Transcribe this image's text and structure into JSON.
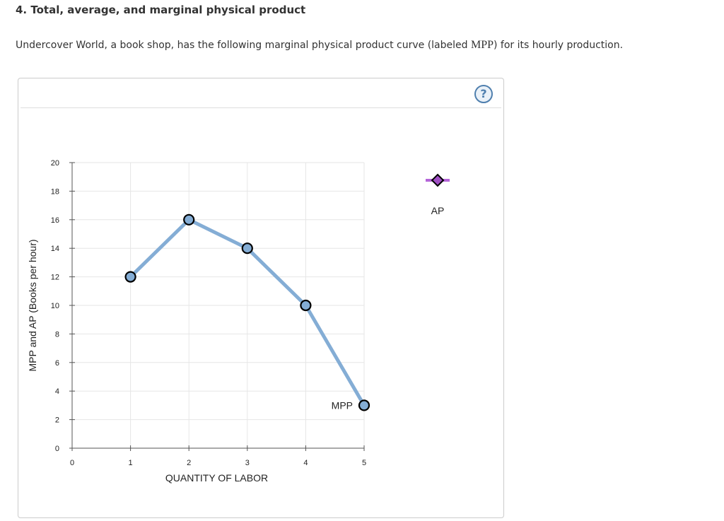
{
  "question": {
    "heading": "4. Total, average, and marginal physical product",
    "intro_before": "Undercover World, a book shop, has the following marginal physical product curve (labeled ",
    "intro_math": "MPP",
    "intro_after": ") for its hourly production."
  },
  "help": {
    "label": "?",
    "icon": "question-mark-icon"
  },
  "palette": {
    "mpp_line": "#84add5",
    "mpp_marker_fill": "#84add5",
    "marker_stroke": "#000000",
    "ap_line": "#b565d9",
    "ap_marker_fill": "#a04fc4",
    "grid": "#e6e6e6",
    "axis": "#555555"
  },
  "chart_data": {
    "type": "line",
    "title": "",
    "xlabel": "QUANTITY OF LABOR",
    "ylabel": "MPP and AP (Books per hour)",
    "xlim": [
      0,
      5
    ],
    "ylim": [
      0,
      20
    ],
    "x_ticks": [
      0,
      1,
      2,
      3,
      4,
      5
    ],
    "y_ticks": [
      0,
      2,
      4,
      6,
      8,
      10,
      12,
      14,
      16,
      18,
      20
    ],
    "grid": true,
    "series": [
      {
        "name": "MPP",
        "x": [
          1,
          2,
          3,
          4,
          5
        ],
        "y": [
          12,
          16,
          14,
          10,
          3
        ],
        "marker": "circle"
      }
    ],
    "legend": {
      "placement": "right",
      "items": [
        {
          "label": "AP",
          "marker": "diamond",
          "tool": "ap-drawing-tool"
        }
      ]
    }
  }
}
